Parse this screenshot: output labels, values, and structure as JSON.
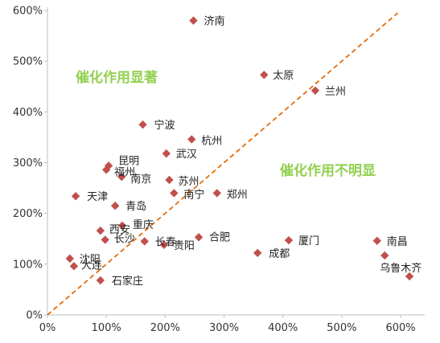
{
  "chart_data": {
    "type": "scatter",
    "xlim": [
      0,
      6.3
    ],
    "ylim": [
      0,
      6.0
    ],
    "x_ticks": [
      "0%",
      "100%",
      "200%",
      "300%",
      "400%",
      "500%",
      "600%"
    ],
    "y_ticks": [
      "0%",
      "100%",
      "200%",
      "300%",
      "400%",
      "500%",
      "600%"
    ],
    "grid": false,
    "colors": {
      "marker": "#c0504d",
      "diagonal": "#e36c09",
      "annotation": "#92d050"
    },
    "annotations": [
      {
        "text": "催化作用显著",
        "key": "upper"
      },
      {
        "text": "催化作用不明显",
        "key": "lower"
      }
    ],
    "points": [
      {
        "label": "济南",
        "x": 2.48,
        "y": 5.8
      },
      {
        "label": "太原",
        "x": 3.68,
        "y": 4.73
      },
      {
        "label": "兰州",
        "x": 4.55,
        "y": 4.42
      },
      {
        "label": "宁波",
        "x": 1.62,
        "y": 3.75
      },
      {
        "label": "杭州",
        "x": 2.45,
        "y": 3.46
      },
      {
        "label": "武汉",
        "x": 2.02,
        "y": 3.18
      },
      {
        "label": "昆明",
        "x": 1.04,
        "y": 2.94
      },
      {
        "label": "福州",
        "x": 1.0,
        "y": 2.86
      },
      {
        "label": "南京",
        "x": 1.26,
        "y": 2.72
      },
      {
        "label": "苏州",
        "x": 2.07,
        "y": 2.66
      },
      {
        "label": "南宁",
        "x": 2.15,
        "y": 2.4
      },
      {
        "label": "郑州",
        "x": 2.88,
        "y": 2.4
      },
      {
        "label": "天津",
        "x": 0.48,
        "y": 2.34
      },
      {
        "label": "青岛",
        "x": 1.15,
        "y": 2.15
      },
      {
        "label": "重庆",
        "x": 1.27,
        "y": 1.76
      },
      {
        "label": "西安",
        "x": 0.9,
        "y": 1.66
      },
      {
        "label": "长沙",
        "x": 0.98,
        "y": 1.48
      },
      {
        "label": "长春",
        "x": 1.65,
        "y": 1.45
      },
      {
        "label": "贵阳",
        "x": 1.98,
        "y": 1.38
      },
      {
        "label": "合肥",
        "x": 2.57,
        "y": 1.53
      },
      {
        "label": "厦门",
        "x": 4.1,
        "y": 1.47
      },
      {
        "label": "成都",
        "x": 3.57,
        "y": 1.22
      },
      {
        "label": "南昌",
        "x": 5.6,
        "y": 1.46
      },
      {
        "label": "乌鲁木齐",
        "x": 5.73,
        "y": 1.17
      },
      {
        "label": "乌鲁木齐-2",
        "x": 6.15,
        "y": 0.76
      },
      {
        "label": "沈阳",
        "x": 0.38,
        "y": 1.11
      },
      {
        "label": "大连",
        "x": 0.45,
        "y": 0.96
      },
      {
        "label": "石家庄",
        "x": 0.9,
        "y": 0.68
      }
    ]
  },
  "labels": {
    "济南": "济南",
    "太原": "太原",
    "兰州": "兰州",
    "宁波": "宁波",
    "杭州": "杭州",
    "武汉": "武汉",
    "昆明": "昆明",
    "福州": "福州",
    "南京": "南京",
    "苏州": "苏州",
    "南宁": "南宁",
    "郑州": "郑州",
    "天津": "天津",
    "青岛": "青岛",
    "重庆": "重庆",
    "西安": "西安",
    "长沙": "长沙",
    "长春": "长春",
    "贵阳": "贵阳",
    "合肥": "合肥",
    "厦门": "厦门",
    "成都": "成都",
    "南昌": "南昌",
    "乌鲁木齐": "乌鲁木齐",
    "沈阳": "沈阳",
    "大连": "大连",
    "石家庄": "石家庄"
  }
}
